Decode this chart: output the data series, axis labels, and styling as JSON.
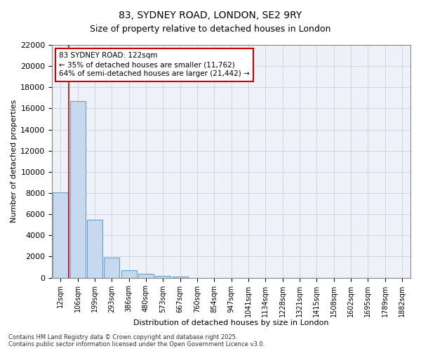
{
  "title1": "83, SYDNEY ROAD, LONDON, SE2 9RY",
  "title2": "Size of property relative to detached houses in London",
  "xlabel": "Distribution of detached houses by size in London",
  "ylabel": "Number of detached properties",
  "bar_color": "#c8d8ee",
  "bar_edge_color": "#6aa0cc",
  "categories": [
    "12sqm",
    "106sqm",
    "199sqm",
    "293sqm",
    "386sqm",
    "480sqm",
    "573sqm",
    "667sqm",
    "760sqm",
    "854sqm",
    "947sqm",
    "1041sqm",
    "1134sqm",
    "1228sqm",
    "1321sqm",
    "1415sqm",
    "1508sqm",
    "1602sqm",
    "1695sqm",
    "1789sqm",
    "1882sqm"
  ],
  "values": [
    8100,
    16700,
    5500,
    1900,
    700,
    380,
    200,
    100,
    0,
    0,
    0,
    0,
    0,
    0,
    0,
    0,
    0,
    0,
    0,
    0,
    0
  ],
  "ylim": [
    0,
    22000
  ],
  "yticks": [
    0,
    2000,
    4000,
    6000,
    8000,
    10000,
    12000,
    14000,
    16000,
    18000,
    20000,
    22000
  ],
  "vline_x": 0.5,
  "vline_color": "#cc0000",
  "annotation_text": "83 SYDNEY ROAD: 122sqm\n← 35% of detached houses are smaller (11,762)\n64% of semi-detached houses are larger (21,442) →",
  "annotation_box_color": "#ffffff",
  "annotation_box_edge": "#cc0000",
  "footer1": "Contains HM Land Registry data © Crown copyright and database right 2025.",
  "footer2": "Contains public sector information licensed under the Open Government Licence v3.0.",
  "background_color": "#eef2f8",
  "grid_color": "#c8d0e0",
  "title_fontsize": 10,
  "subtitle_fontsize": 9
}
